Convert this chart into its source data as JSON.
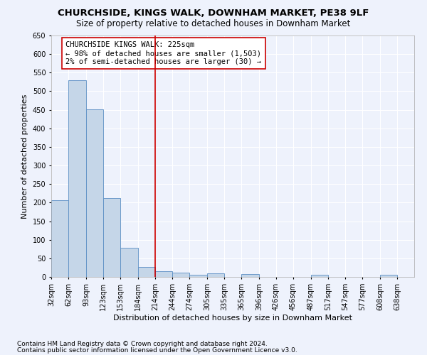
{
  "title": "CHURCHSIDE, KINGS WALK, DOWNHAM MARKET, PE38 9LF",
  "subtitle": "Size of property relative to detached houses in Downham Market",
  "xlabel": "Distribution of detached houses by size in Downham Market",
  "ylabel": "Number of detached properties",
  "footnote1": "Contains HM Land Registry data © Crown copyright and database right 2024.",
  "footnote2": "Contains public sector information licensed under the Open Government Licence v3.0.",
  "annotation_line1": "CHURCHSIDE KINGS WALK: 225sqm",
  "annotation_line2": "← 98% of detached houses are smaller (1,503)",
  "annotation_line3": "2% of semi-detached houses are larger (30) →",
  "bar_color": "#c5d6e8",
  "bar_edge_color": "#5b8ec4",
  "vline_color": "#cc0000",
  "vline_x": 214,
  "categories": [
    "32sqm",
    "62sqm",
    "93sqm",
    "123sqm",
    "153sqm",
    "184sqm",
    "214sqm",
    "244sqm",
    "274sqm",
    "305sqm",
    "335sqm",
    "365sqm",
    "396sqm",
    "426sqm",
    "456sqm",
    "487sqm",
    "517sqm",
    "547sqm",
    "577sqm",
    "608sqm",
    "638sqm"
  ],
  "bin_edges": [
    32,
    62,
    93,
    123,
    153,
    184,
    214,
    244,
    274,
    305,
    335,
    365,
    396,
    426,
    456,
    487,
    517,
    547,
    577,
    608,
    638,
    668
  ],
  "values": [
    207,
    530,
    451,
    212,
    78,
    27,
    15,
    11,
    5,
    9,
    0,
    7,
    0,
    0,
    0,
    5,
    0,
    0,
    0,
    5,
    0
  ],
  "ylim": [
    0,
    650
  ],
  "yticks": [
    0,
    50,
    100,
    150,
    200,
    250,
    300,
    350,
    400,
    450,
    500,
    550,
    600,
    650
  ],
  "background_color": "#eef2fc",
  "grid_color": "#ffffff",
  "title_fontsize": 9.5,
  "subtitle_fontsize": 8.5,
  "axis_label_fontsize": 8,
  "tick_fontsize": 7,
  "annotation_fontsize": 7.5,
  "footnote_fontsize": 6.5
}
